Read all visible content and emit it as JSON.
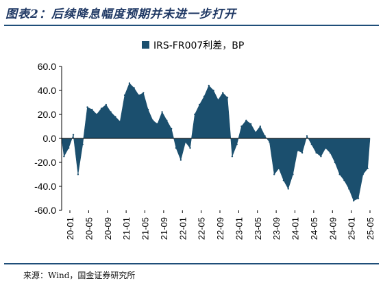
{
  "page": {
    "title": "图表2：后续降息幅度预期并未进一步打开",
    "footer": "来源：Wind，国金证券研究所"
  },
  "colors": {
    "series": "#1b4f6e",
    "rule": "#1f4e79",
    "title": "#1f3864"
  },
  "chart_data": {
    "type": "area",
    "legend_position": "top-center",
    "grid": false,
    "ylim": [
      -60,
      60
    ],
    "yticks": [
      -60,
      -40,
      -20,
      0,
      20,
      40,
      60
    ],
    "ytick_labels": [
      "-60.0",
      "-40.0",
      "-20.0",
      "0.0",
      "20.0",
      "40.0",
      "60.0"
    ],
    "xticks": [
      "20-01",
      "20-05",
      "20-09",
      "21-01",
      "21-05",
      "21-09",
      "22-01",
      "22-05",
      "22-09",
      "23-01",
      "23-05",
      "23-09",
      "24-01",
      "24-05",
      "24-09",
      "25-01",
      "25-05"
    ],
    "series": [
      {
        "name": "IRS-FR007利差，BP",
        "x": [
          "20-01",
          "20-02",
          "20-03",
          "20-04",
          "20-05",
          "20-06",
          "20-07",
          "20-08",
          "20-09",
          "20-10",
          "20-11",
          "20-12",
          "21-01",
          "21-02",
          "21-03",
          "21-04",
          "21-05",
          "21-06",
          "21-07",
          "21-08",
          "21-09",
          "21-10",
          "21-11",
          "21-12",
          "22-01",
          "22-02",
          "22-03",
          "22-04",
          "22-05",
          "22-06",
          "22-07",
          "22-08",
          "22-09",
          "22-10",
          "22-11",
          "22-12",
          "23-01",
          "23-02",
          "23-03",
          "23-04",
          "23-05",
          "23-06",
          "23-07",
          "23-08",
          "23-09",
          "23-10",
          "23-11",
          "23-12",
          "24-01",
          "24-02",
          "24-03",
          "24-04",
          "24-05",
          "24-06",
          "24-07",
          "24-08",
          "24-09",
          "24-10",
          "24-11",
          "24-12",
          "25-01",
          "25-02",
          "25-03",
          "25-04",
          "25-05",
          "25-06"
        ],
        "values": [
          -15,
          -8,
          3,
          -30,
          -5,
          26,
          24,
          20,
          25,
          28,
          22,
          18,
          14,
          36,
          46,
          42,
          36,
          38,
          24,
          15,
          12,
          22,
          15,
          8,
          -8,
          -18,
          -3,
          -8,
          20,
          28,
          35,
          44,
          40,
          32,
          38,
          34,
          -15,
          -5,
          10,
          15,
          12,
          5,
          10,
          2,
          -3,
          -30,
          -25,
          -35,
          -42,
          -30,
          -10,
          -12,
          2,
          -5,
          -12,
          -15,
          -8,
          -12,
          -20,
          -30,
          -35,
          -42,
          -52,
          -50,
          -30,
          -25
        ]
      }
    ]
  }
}
